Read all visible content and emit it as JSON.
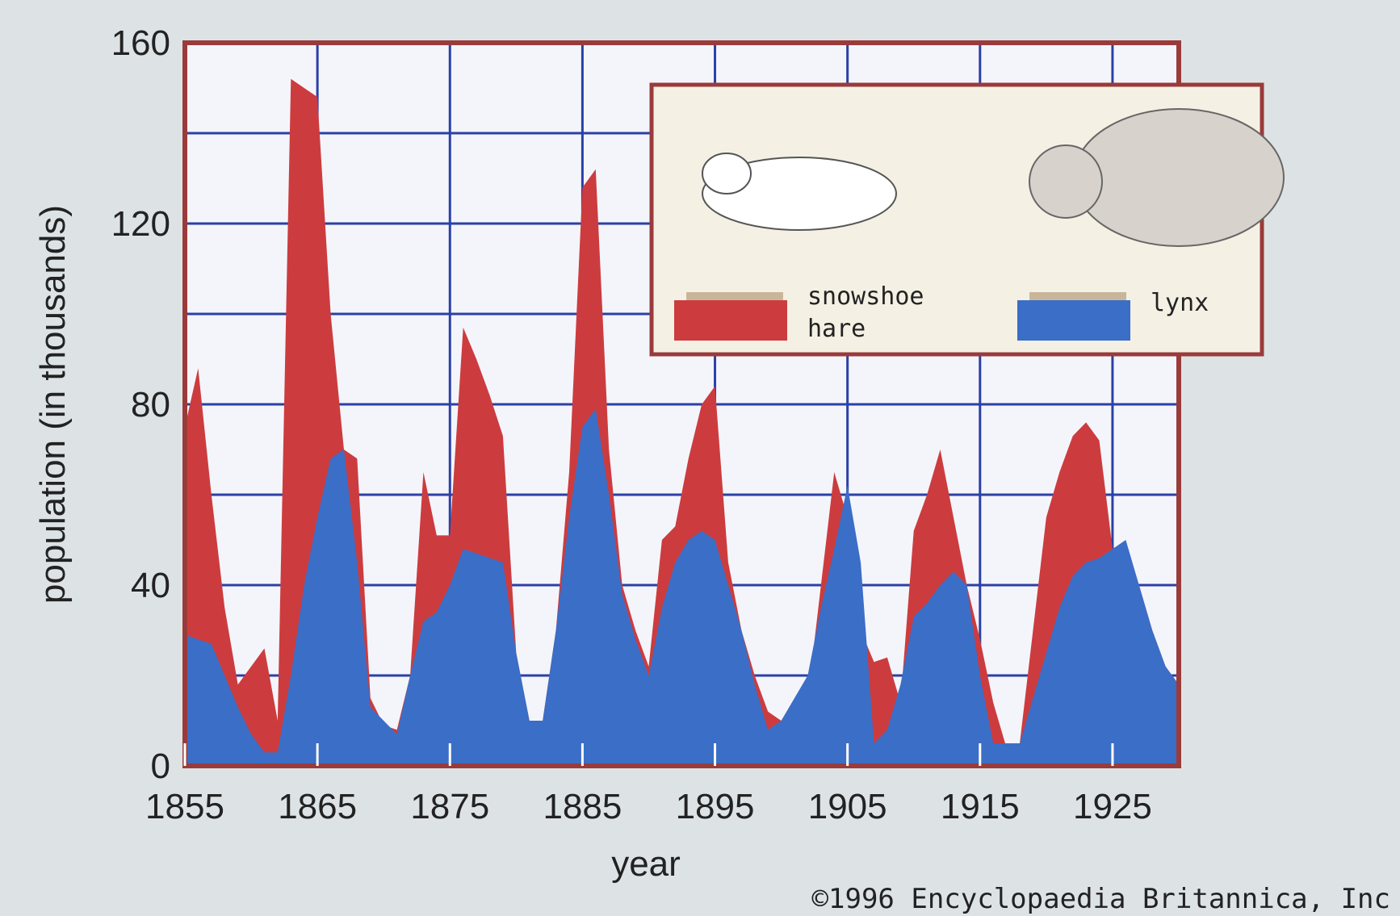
{
  "chart_data": {
    "type": "area",
    "ylabel": "population (in thousands)",
    "xlabel": "year",
    "credit": "©1996 Encyclopaedia Britannica, Inc",
    "x": [
      1855,
      1856,
      1857,
      1858,
      1859,
      1860,
      1861,
      1862,
      1863,
      1864,
      1865,
      1866,
      1867,
      1868,
      1869,
      1870,
      1871,
      1872,
      1873,
      1874,
      1875,
      1876,
      1877,
      1878,
      1879,
      1880,
      1881,
      1882,
      1883,
      1884,
      1885,
      1886,
      1887,
      1888,
      1889,
      1890,
      1891,
      1892,
      1893,
      1894,
      1895,
      1896,
      1897,
      1898,
      1899,
      1900,
      1901,
      1902,
      1903,
      1904,
      1905,
      1906,
      1907,
      1908,
      1909,
      1910,
      1911,
      1912,
      1913,
      1914,
      1915,
      1916,
      1917,
      1918,
      1919,
      1920,
      1921,
      1922,
      1923,
      1924,
      1925,
      1926,
      1927,
      1928,
      1929,
      1930
    ],
    "series": [
      {
        "name": "snowshoe hare",
        "color": "#cc3c3e",
        "values": [
          75,
          88,
          60,
          35,
          18,
          22,
          26,
          10,
          152,
          150,
          148,
          100,
          70,
          68,
          15,
          9,
          8,
          20,
          65,
          51,
          51,
          97,
          90,
          82,
          73,
          25,
          10,
          10,
          30,
          65,
          128,
          132,
          70,
          40,
          30,
          22,
          50,
          53,
          68,
          80,
          84,
          45,
          30,
          20,
          12,
          10,
          8,
          15,
          40,
          65,
          55,
          30,
          23,
          24,
          14,
          52,
          60,
          70,
          55,
          40,
          28,
          14,
          4,
          5,
          30,
          55,
          65,
          73,
          76,
          72,
          48,
          45,
          40,
          30,
          22,
          18
        ]
      },
      {
        "name": "lynx",
        "color": "#3b6ec6",
        "values": [
          29,
          28,
          27,
          20,
          13,
          7,
          3,
          3,
          20,
          40,
          55,
          68,
          70,
          45,
          13,
          10,
          7,
          20,
          32,
          34,
          40,
          48,
          47,
          46,
          45,
          25,
          10,
          10,
          30,
          55,
          75,
          79,
          60,
          38,
          28,
          20,
          35,
          45,
          50,
          52,
          50,
          40,
          30,
          18,
          8,
          10,
          15,
          20,
          35,
          48,
          62,
          45,
          5,
          8,
          18,
          33,
          36,
          40,
          43,
          40,
          20,
          5,
          5,
          5,
          15,
          25,
          35,
          42,
          45,
          46,
          48,
          50,
          40,
          30,
          22,
          18
        ]
      }
    ],
    "xlim": [
      1855,
      1930
    ],
    "ylim": [
      0,
      160
    ],
    "xticks": [
      1855,
      1865,
      1875,
      1885,
      1895,
      1905,
      1915,
      1925
    ],
    "yticks": [
      0,
      40,
      80,
      120,
      160
    ],
    "y_minor_ticks": [
      20,
      60,
      100,
      140
    ],
    "grid": true
  }
}
